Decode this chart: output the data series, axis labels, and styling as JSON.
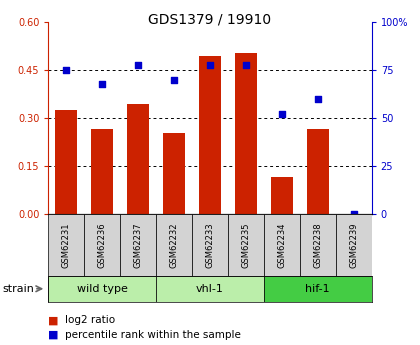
{
  "title": "GDS1379 / 19910",
  "samples": [
    "GSM62231",
    "GSM62236",
    "GSM62237",
    "GSM62232",
    "GSM62233",
    "GSM62235",
    "GSM62234",
    "GSM62238",
    "GSM62239"
  ],
  "log2_ratio": [
    0.325,
    0.265,
    0.345,
    0.255,
    0.495,
    0.505,
    0.115,
    0.265,
    0.0
  ],
  "percentile_rank": [
    75,
    68,
    78,
    70,
    78,
    78,
    52,
    60,
    0
  ],
  "groups": [
    {
      "label": "wild type",
      "start": 0,
      "end": 3,
      "color": "#c0eec0"
    },
    {
      "label": "vhl-1",
      "start": 3,
      "end": 6,
      "color": "#c0eec0"
    },
    {
      "label": "hif-1",
      "start": 6,
      "end": 9,
      "color": "#44cc44"
    }
  ],
  "ylim_left": [
    0,
    0.6
  ],
  "ylim_right": [
    0,
    100
  ],
  "yticks_left": [
    0,
    0.15,
    0.3,
    0.45,
    0.6
  ],
  "yticks_right": [
    0,
    25,
    50,
    75,
    100
  ],
  "bar_color": "#cc2200",
  "dot_color": "#0000cc",
  "title_fontsize": 10,
  "tick_fontsize": 7,
  "group_label_fontsize": 8,
  "sample_fontsize": 6,
  "legend_fontsize": 7.5,
  "legend_red_label": "log2 ratio",
  "legend_blue_label": "percentile rank within the sample",
  "strain_label": "strain"
}
